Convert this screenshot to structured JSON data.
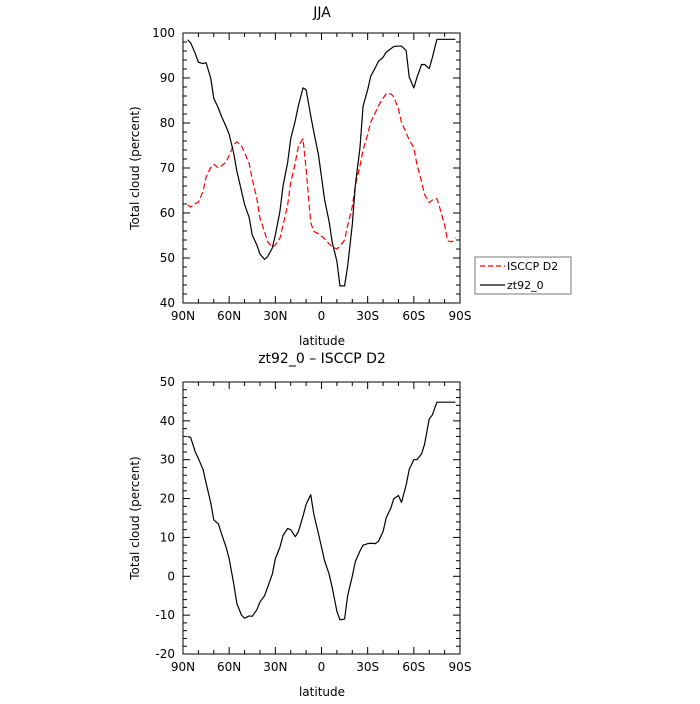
{
  "chart_data": [
    {
      "type": "line",
      "title": "JJA",
      "xlabel": "latitude",
      "ylabel": "Total cloud (percent)",
      "x_ticks": [
        "90N",
        "60N",
        "30N",
        "0",
        "30S",
        "60S",
        "90S"
      ],
      "xlim": [
        90,
        -90
      ],
      "ylim": [
        40,
        100
      ],
      "y_ticks": [
        "40",
        "50",
        "60",
        "70",
        "80",
        "90",
        "100"
      ],
      "legend_position": "right",
      "series": [
        {
          "name": "ISCCP D2",
          "color": "#ff0000",
          "dash": "dashed",
          "x": [
            87,
            85,
            82,
            80,
            77,
            75,
            72,
            70,
            67,
            65,
            62,
            60,
            57,
            55,
            52,
            50,
            47,
            45,
            42,
            40,
            37,
            35,
            32,
            30,
            27,
            25,
            22,
            20,
            17,
            15,
            12,
            10,
            7,
            5,
            2,
            0,
            -2,
            -5,
            -7,
            -10,
            -12,
            -15,
            -17,
            -20,
            -22,
            -25,
            -27,
            -30,
            -32,
            -35,
            -37,
            -40,
            -42,
            -45,
            -47,
            -50,
            -52,
            -55,
            -57,
            -60,
            -62,
            -65,
            -67,
            -70,
            -72,
            -75,
            -77,
            -80,
            -82,
            -85,
            -87
          ],
          "values": [
            61.8,
            61.3,
            62.1,
            62.4,
            64.8,
            68.0,
            70.1,
            70.8,
            70.0,
            70.5,
            71.3,
            72.8,
            75.2,
            75.8,
            74.9,
            73.4,
            71.0,
            67.5,
            63.2,
            58.9,
            55.8,
            53.6,
            52.4,
            52.9,
            54.4,
            57.3,
            61.8,
            66.8,
            71.2,
            74.9,
            76.5,
            69.7,
            57.9,
            55.9,
            55.4,
            54.8,
            54.3,
            53.1,
            52.5,
            52.0,
            52.6,
            54.0,
            57.2,
            61.4,
            66.1,
            70.5,
            74.0,
            77.4,
            80.2,
            82.3,
            83.8,
            85.5,
            86.5,
            86.5,
            85.8,
            83.1,
            80.1,
            77.9,
            76.2,
            74.5,
            70.8,
            67.0,
            64.1,
            62.3,
            62.9,
            63.2,
            61.0,
            57.3,
            53.8,
            53.6,
            54.5
          ]
        },
        {
          "name": "zt92_0",
          "color": "#000000",
          "dash": "solid",
          "x": [
            87,
            85,
            82,
            80,
            77,
            75,
            72,
            70,
            67,
            65,
            62,
            60,
            57,
            55,
            52,
            50,
            47,
            45,
            42,
            40,
            37,
            35,
            32,
            30,
            27,
            25,
            22,
            20,
            17,
            15,
            12,
            10,
            7,
            5,
            2,
            0,
            -2,
            -5,
            -7,
            -10,
            -12,
            -15,
            -17,
            -20,
            -22,
            -25,
            -27,
            -30,
            -32,
            -35,
            -37,
            -40,
            -42,
            -45,
            -47,
            -50,
            -52,
            -55,
            -57,
            -60,
            -62,
            -65,
            -67,
            -70,
            -72,
            -75,
            -77,
            -80,
            -82,
            -85,
            -87
          ],
          "values": [
            98.5,
            97.8,
            95.4,
            93.5,
            93.2,
            93.4,
            90.0,
            85.5,
            83.3,
            81.5,
            79.2,
            77.5,
            73.2,
            69.3,
            64.9,
            61.9,
            59.0,
            55.1,
            52.9,
            50.9,
            49.7,
            50.3,
            52.2,
            55.1,
            60.4,
            66.0,
            71.2,
            76.5,
            80.6,
            83.9,
            87.8,
            87.4,
            81.6,
            78.0,
            73.0,
            68.0,
            63.0,
            58.0,
            53.4,
            49.3,
            43.8,
            43.8,
            48.2,
            57.4,
            66.2,
            74.5,
            83.7,
            87.4,
            90.4,
            92.3,
            93.7,
            94.6,
            95.7,
            96.5,
            97.0,
            97.1,
            97.1,
            96.1,
            90.2,
            87.8,
            90.1,
            93.0,
            93.0,
            92.1,
            94.5,
            98.6,
            98.6,
            98.6,
            98.6,
            98.6,
            98.6
          ]
        }
      ]
    },
    {
      "type": "line",
      "title": "zt92_0 – ISCCP D2",
      "xlabel": "latitude",
      "ylabel": "Total cloud (percent)",
      "x_ticks": [
        "90N",
        "60N",
        "30N",
        "0",
        "30S",
        "60S",
        "90S"
      ],
      "xlim": [
        90,
        -90
      ],
      "ylim": [
        -20,
        50
      ],
      "y_ticks": [
        "-20",
        "-10",
        "0",
        "10",
        "20",
        "30",
        "40",
        "50"
      ],
      "series": [
        {
          "color": "#000000",
          "dash": "solid",
          "x": [
            87,
            85,
            82,
            80,
            77,
            75,
            72,
            70,
            67,
            65,
            62,
            60,
            57,
            55,
            52,
            50,
            47,
            45,
            42,
            40,
            37,
            35,
            32,
            30,
            27,
            25,
            22,
            20,
            17,
            15,
            12,
            10,
            7,
            5,
            2,
            0,
            -2,
            -5,
            -7,
            -10,
            -12,
            -15,
            -17,
            -20,
            -22,
            -25,
            -27,
            -30,
            -32,
            -35,
            -37,
            -40,
            -42,
            -45,
            -47,
            -50,
            -52,
            -55,
            -57,
            -60,
            -62,
            -65,
            -67,
            -70,
            -72,
            -75,
            -77,
            -80,
            -82,
            -85,
            -87
          ],
          "values": [
            36.0,
            35.7,
            32.0,
            30.3,
            27.5,
            24.0,
            19.0,
            14.5,
            13.5,
            11.0,
            7.5,
            4.5,
            -2.0,
            -7.0,
            -10.0,
            -10.8,
            -10.2,
            -10.3,
            -8.6,
            -6.6,
            -5.0,
            -2.8,
            0.5,
            4.5,
            7.5,
            10.5,
            12.3,
            12.0,
            10.2,
            11.5,
            15.5,
            18.5,
            21.0,
            16.0,
            11.0,
            7.5,
            4.0,
            0.5,
            -3.0,
            -9.0,
            -11.2,
            -11.0,
            -5.0,
            0.0,
            3.8,
            6.5,
            8.0,
            8.4,
            8.5,
            8.4,
            9.0,
            11.5,
            15.0,
            17.5,
            20.0,
            20.8,
            19.0,
            23.5,
            27.5,
            30.0,
            30.0,
            31.5,
            34.0,
            40.5,
            41.5,
            44.8,
            44.8,
            44.8,
            44.8,
            44.8,
            44.8
          ]
        }
      ]
    }
  ]
}
